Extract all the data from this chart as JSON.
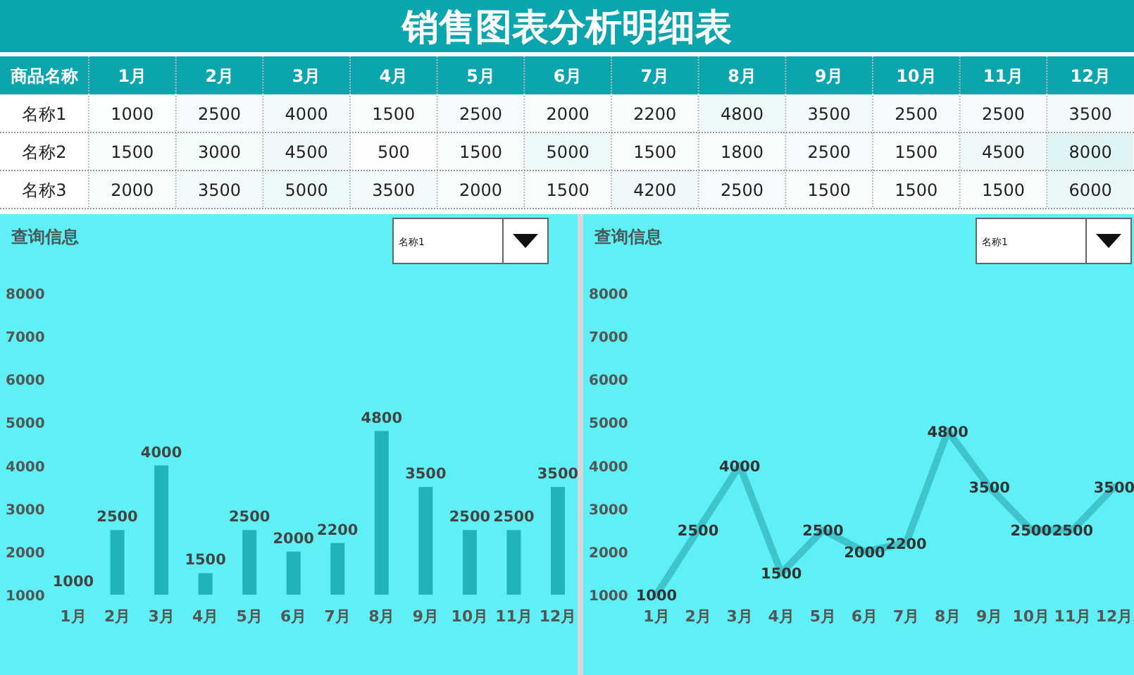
{
  "chart_data": [
    {
      "type": "heatmap",
      "title": "销售图表分析明细表",
      "ylabel": "商品名称",
      "categories": [
        "1月",
        "2月",
        "3月",
        "4月",
        "5月",
        "6月",
        "7月",
        "8月",
        "9月",
        "10月",
        "11月",
        "12月"
      ],
      "y_categories": [
        "名称1",
        "名称2",
        "名称3"
      ],
      "cells": [
        [
          1000,
          2500,
          4000,
          1500,
          2500,
          2000,
          2200,
          4800,
          3500,
          2500,
          2500,
          3500
        ],
        [
          1500,
          3000,
          4500,
          500,
          1500,
          5000,
          1500,
          1800,
          2500,
          1500,
          4500,
          8000
        ],
        [
          2000,
          3500,
          5000,
          3500,
          2000,
          1500,
          4200,
          2500,
          1500,
          1500,
          1500,
          6000
        ]
      ],
      "cell_labels": [
        [
          "1000",
          "2500",
          "4000",
          "1500",
          "2500",
          "2000",
          "2200",
          "4800",
          "3500",
          "2500",
          "2500",
          "3500"
        ],
        [
          "1500",
          "3000",
          "4500",
          "500",
          "1500",
          "5000",
          "1500",
          "1800",
          "2500",
          "1500",
          "4500",
          "8000"
        ],
        [
          "2000",
          "3500",
          "5000",
          "3500",
          "2000",
          "1500",
          "4200",
          "2500",
          "1500",
          "1500",
          "1500",
          "6000"
        ]
      ]
    },
    {
      "type": "bar",
      "title": "查询信息",
      "annotations": [
        "名称1"
      ],
      "categories": [
        "1月",
        "2月",
        "3月",
        "4月",
        "5月",
        "6月",
        "7月",
        "8月",
        "9月",
        "10月",
        "11月",
        "12月"
      ],
      "values": [
        1000,
        2500,
        4000,
        1500,
        2500,
        2000,
        2200,
        4800,
        3500,
        2500,
        2500,
        3500
      ],
      "color": "#20b3b9",
      "ylim": [
        1000,
        8000
      ],
      "yticks": [
        1000,
        2000,
        3000,
        4000,
        5000,
        6000,
        7000,
        8000
      ],
      "data_labels": true
    },
    {
      "type": "line",
      "title": "查询信息",
      "annotations": [
        "名称1"
      ],
      "categories": [
        "1月",
        "2月",
        "3月",
        "4月",
        "5月",
        "6月",
        "7月",
        "8月",
        "9月",
        "10月",
        "11月",
        "12月"
      ],
      "values": [
        1000,
        2500,
        4000,
        1500,
        2500,
        2000,
        2200,
        4800,
        3500,
        2500,
        2500,
        3500
      ],
      "color": "#3ec5cc",
      "ylim": [
        1000,
        8000
      ],
      "yticks": [
        1000,
        2000,
        3000,
        4000,
        5000,
        6000,
        7000,
        8000
      ],
      "data_labels": true
    }
  ]
}
